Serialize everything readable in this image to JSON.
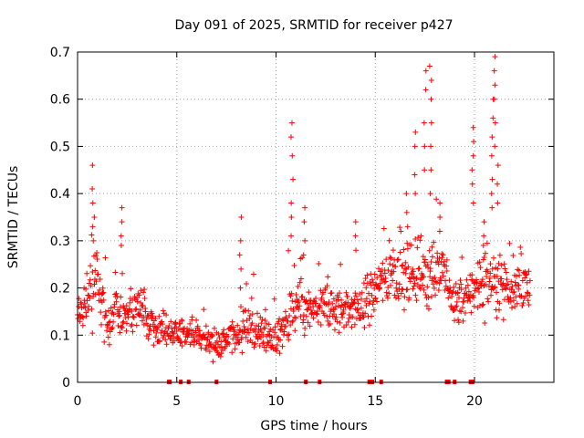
{
  "chart_data": {
    "type": "scatter",
    "title": "Day 091 of 2025, SRMTID for receiver p427",
    "xlabel": "GPS time / hours",
    "ylabel": "SRMTID / TECUs",
    "xlim": [
      0,
      24
    ],
    "ylim": [
      0,
      0.7
    ],
    "x_ticks": [
      0,
      5,
      10,
      15,
      20
    ],
    "y_ticks": [
      0,
      0.1,
      0.2,
      0.3,
      0.4,
      0.5,
      0.6,
      0.7
    ],
    "x_tick_labels": [
      "0",
      "5",
      "10",
      "15",
      "20"
    ],
    "y_tick_labels": [
      "0",
      "0.1",
      "0.2",
      "0.3",
      "0.4",
      "0.5",
      "0.6",
      "0.7"
    ],
    "grid": true,
    "legend": "none",
    "marker": "+",
    "color": "#ff0000",
    "envelope": {
      "note": "approximate median trend and spread of the dense SRMTID point cloud (hours, TECU)",
      "x": [
        0,
        0.5,
        1,
        1.5,
        2,
        2.5,
        3,
        3.5,
        4,
        4.5,
        5,
        5.5,
        6,
        6.5,
        7,
        7.5,
        8,
        8.5,
        9,
        9.5,
        10,
        10.5,
        11,
        11.5,
        12,
        12.5,
        13,
        13.5,
        14,
        14.5,
        15,
        15.5,
        16,
        16.5,
        17,
        17.5,
        18,
        18.5,
        19,
        19.5,
        20,
        20.5,
        21,
        21.5,
        22,
        22.5,
        22.8
      ],
      "center": [
        0.14,
        0.17,
        0.21,
        0.12,
        0.15,
        0.14,
        0.16,
        0.14,
        0.12,
        0.1,
        0.1,
        0.11,
        0.1,
        0.09,
        0.08,
        0.09,
        0.1,
        0.12,
        0.11,
        0.1,
        0.09,
        0.12,
        0.16,
        0.15,
        0.15,
        0.16,
        0.15,
        0.16,
        0.15,
        0.17,
        0.2,
        0.22,
        0.24,
        0.22,
        0.24,
        0.23,
        0.24,
        0.22,
        0.17,
        0.17,
        0.2,
        0.21,
        0.22,
        0.21,
        0.2,
        0.2,
        0.19
      ],
      "spread": [
        0.035,
        0.045,
        0.07,
        0.04,
        0.05,
        0.045,
        0.045,
        0.04,
        0.035,
        0.03,
        0.03,
        0.035,
        0.03,
        0.03,
        0.025,
        0.03,
        0.035,
        0.04,
        0.04,
        0.035,
        0.035,
        0.045,
        0.055,
        0.05,
        0.05,
        0.05,
        0.05,
        0.05,
        0.05,
        0.05,
        0.055,
        0.06,
        0.065,
        0.06,
        0.07,
        0.065,
        0.07,
        0.06,
        0.05,
        0.05,
        0.06,
        0.065,
        0.065,
        0.06,
        0.055,
        0.05,
        0.04
      ],
      "points_per_hour": 48
    },
    "spikes": [
      {
        "x": 0.8,
        "values": [
          0.46,
          0.41,
          0.38,
          0.35,
          0.33,
          0.3
        ]
      },
      {
        "x": 2.2,
        "values": [
          0.37,
          0.34,
          0.31,
          0.29
        ]
      },
      {
        "x": 8.2,
        "values": [
          0.35,
          0.3,
          0.27,
          0.24,
          0.2
        ]
      },
      {
        "x": 10.8,
        "values": [
          0.55,
          0.52,
          0.48,
          0.43,
          0.38,
          0.35,
          0.31
        ]
      },
      {
        "x": 11.4,
        "values": [
          0.37,
          0.34,
          0.3,
          0.27
        ]
      },
      {
        "x": 14.0,
        "values": [
          0.34,
          0.31,
          0.28
        ]
      },
      {
        "x": 16.6,
        "values": [
          0.4,
          0.36,
          0.33
        ]
      },
      {
        "x": 17.0,
        "values": [
          0.53,
          0.5,
          0.44,
          0.4
        ]
      },
      {
        "x": 17.5,
        "values": [
          0.66,
          0.62,
          0.55,
          0.5,
          0.45
        ]
      },
      {
        "x": 17.8,
        "values": [
          0.67,
          0.64,
          0.6,
          0.55,
          0.5,
          0.45,
          0.4
        ]
      },
      {
        "x": 18.2,
        "values": [
          0.38,
          0.35,
          0.32
        ]
      },
      {
        "x": 19.9,
        "values": [
          0.54,
          0.51,
          0.48,
          0.45,
          0.42,
          0.38
        ]
      },
      {
        "x": 20.5,
        "values": [
          0.34,
          0.31,
          0.29
        ]
      },
      {
        "x": 20.9,
        "values": [
          0.6,
          0.56,
          0.52,
          0.48,
          0.43,
          0.4,
          0.37
        ]
      },
      {
        "x": 21.0,
        "values": [
          0.69,
          0.66,
          0.63,
          0.6,
          0.55,
          0.5
        ]
      },
      {
        "x": 21.2,
        "values": [
          0.46,
          0.42,
          0.38
        ]
      }
    ],
    "baseline_marks_x": [
      4.6,
      4.65,
      5.2,
      5.6,
      7.0,
      9.7,
      11.5,
      12.2,
      14.7,
      14.8,
      14.85,
      15.3,
      18.6,
      18.7,
      19.0,
      19.8,
      19.9
    ]
  }
}
